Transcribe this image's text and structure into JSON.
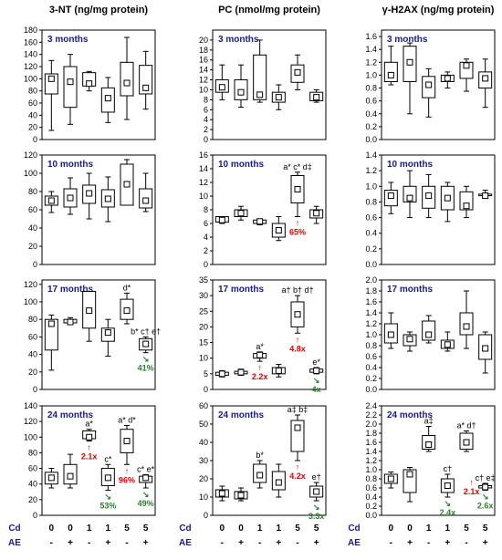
{
  "chart_data": {
    "type": "box",
    "columns": [
      {
        "title": "3-NT (ng/mg protein)"
      },
      {
        "title": "PC (nmol/mg protein)"
      },
      {
        "title": "γ-H2AX (ng/mg protein)"
      }
    ],
    "x_row_labels": [
      "Cd",
      "AE"
    ],
    "x_groups": [
      {
        "cd": "0",
        "ae": "-"
      },
      {
        "cd": "0",
        "ae": "+"
      },
      {
        "cd": "1",
        "ae": "-"
      },
      {
        "cd": "1",
        "ae": "+"
      },
      {
        "cd": "5",
        "ae": "-"
      },
      {
        "cd": "5",
        "ae": "+"
      }
    ],
    "panels": [
      {
        "title": "3 months",
        "ylim": [
          0,
          180
        ],
        "yticks": [
          0,
          20,
          40,
          60,
          80,
          100,
          120,
          140,
          160,
          180
        ],
        "boxes": [
          [
            15,
            75,
            100,
            108,
            130
          ],
          [
            25,
            53,
            95,
            120,
            140
          ],
          [
            80,
            88,
            92,
            110,
            112
          ],
          [
            28,
            45,
            68,
            85,
            102
          ],
          [
            33,
            72,
            93,
            127,
            168
          ],
          [
            50,
            75,
            85,
            122,
            145
          ]
        ],
        "annotations": []
      },
      {
        "title": "3 months",
        "ylim": [
          0,
          22
        ],
        "yticks": [
          0,
          2,
          4,
          6,
          8,
          10,
          12,
          14,
          16,
          18,
          20
        ],
        "boxes": [
          [
            8,
            9.5,
            10.5,
            12,
            15
          ],
          [
            6.5,
            8,
            9.5,
            12,
            15
          ],
          [
            7.5,
            8,
            9,
            17,
            20
          ],
          [
            6,
            7.5,
            8.5,
            9.5,
            11
          ],
          [
            10,
            11.5,
            13.5,
            15,
            17
          ],
          [
            7.5,
            7.8,
            8.5,
            9.5,
            10
          ]
        ],
        "annotations": []
      },
      {
        "title": "3 months",
        "ylim": [
          0,
          1.7
        ],
        "yticks": [
          0,
          0.2,
          0.4,
          0.6,
          0.8,
          1.0,
          1.2,
          1.4,
          1.6
        ],
        "boxes": [
          [
            0.85,
            0.9,
            1.0,
            1.2,
            1.45
          ],
          [
            0.4,
            0.9,
            1.2,
            1.45,
            1.5
          ],
          [
            0.35,
            0.65,
            0.85,
            0.98,
            1.1
          ],
          [
            0.8,
            0.9,
            0.95,
            1.0,
            1.05
          ],
          [
            0.75,
            0.95,
            1.15,
            1.2,
            1.25
          ],
          [
            0.5,
            0.8,
            0.95,
            1.05,
            1.25
          ]
        ],
        "annotations": []
      },
      {
        "title": "10 months",
        "ylim": [
          0,
          120
        ],
        "yticks": [
          0,
          20,
          40,
          60,
          80,
          100,
          120
        ],
        "boxes": [
          [
            57,
            65,
            70,
            75,
            80
          ],
          [
            55,
            63,
            73,
            83,
            95
          ],
          [
            50,
            67,
            78,
            87,
            100
          ],
          [
            47,
            63,
            72,
            82,
            96
          ],
          [
            65,
            65,
            88,
            110,
            115
          ],
          [
            58,
            62,
            70,
            83,
            100
          ]
        ],
        "annotations": []
      },
      {
        "title": "10 months",
        "ylim": [
          0,
          16
        ],
        "yticks": [
          0,
          2,
          4,
          6,
          8,
          10,
          12,
          14,
          16
        ],
        "boxes": [
          [
            6,
            6.2,
            6.5,
            7,
            7
          ],
          [
            6.5,
            7,
            7.5,
            8,
            8.5
          ],
          [
            5.8,
            6,
            6.3,
            6.5,
            6.5
          ],
          [
            3.5,
            4,
            5,
            6,
            7
          ],
          [
            7,
            9,
            11,
            13,
            13.5
          ],
          [
            6,
            6.8,
            7.5,
            8,
            8.5
          ]
        ],
        "annotations": [
          {
            "box": 4,
            "text": "a* c* d‡",
            "style": "ann",
            "pos": "above"
          },
          {
            "box": 4,
            "text": "↑",
            "style": "red",
            "pos": "below"
          },
          {
            "box": 4,
            "text": "65%",
            "style": "red",
            "pos": "below2"
          }
        ]
      },
      {
        "title": "10 months",
        "ylim": [
          0,
          1.4
        ],
        "yticks": [
          0,
          0.2,
          0.4,
          0.6,
          0.8,
          1.0,
          1.2,
          1.4
        ],
        "boxes": [
          [
            0.65,
            0.75,
            0.88,
            0.95,
            1.05
          ],
          [
            0.6,
            0.8,
            0.85,
            1.0,
            1.2
          ],
          [
            0.6,
            0.72,
            0.88,
            1.0,
            1.15
          ],
          [
            0.55,
            0.7,
            0.85,
            1.0,
            1.05
          ],
          [
            0.6,
            0.7,
            0.75,
            0.93,
            1.0
          ],
          [
            0.85,
            0.88,
            0.88,
            0.9,
            0.95
          ]
        ],
        "annotations": []
      },
      {
        "title": "17 months",
        "ylim": [
          0,
          125
        ],
        "yticks": [
          0,
          20,
          40,
          60,
          80,
          100,
          120
        ],
        "boxes": [
          [
            22,
            45,
            75,
            80,
            85
          ],
          [
            75,
            76,
            77,
            80,
            82
          ],
          [
            55,
            70,
            90,
            112,
            112
          ],
          [
            38,
            55,
            65,
            70,
            80
          ],
          [
            75,
            80,
            90,
            103,
            110
          ],
          [
            42,
            45,
            52,
            58,
            60
          ]
        ],
        "annotations": [
          {
            "box": 4,
            "text": "d*",
            "style": "ann",
            "pos": "above"
          },
          {
            "box": 5,
            "text": "b* c† e†",
            "style": "ann",
            "pos": "above"
          },
          {
            "box": 5,
            "text": "↘",
            "style": "green",
            "pos": "below"
          },
          {
            "box": 5,
            "text": "41%",
            "style": "green",
            "pos": "below2"
          }
        ]
      },
      {
        "title": "17 months",
        "ylim": [
          0,
          35
        ],
        "yticks": [
          0,
          5,
          10,
          15,
          20,
          25,
          30,
          35
        ],
        "boxes": [
          [
            4,
            4.5,
            5,
            5.5,
            6
          ],
          [
            4.5,
            5,
            5.5,
            5.8,
            6.5
          ],
          [
            9,
            10,
            11,
            11.5,
            12
          ],
          [
            4,
            5,
            6,
            7,
            8
          ],
          [
            18,
            20,
            24,
            28,
            30
          ],
          [
            5,
            5.5,
            6,
            6.5,
            7
          ]
        ],
        "annotations": [
          {
            "box": 2,
            "text": "a*",
            "style": "ann",
            "pos": "above"
          },
          {
            "box": 2,
            "text": "↑",
            "style": "red",
            "pos": "below"
          },
          {
            "box": 2,
            "text": "2.2x",
            "style": "red",
            "pos": "below2"
          },
          {
            "box": 4,
            "text": "a† b† d†",
            "style": "ann",
            "pos": "above"
          },
          {
            "box": 4,
            "text": "↑",
            "style": "red",
            "pos": "below"
          },
          {
            "box": 4,
            "text": "4.8x",
            "style": "red",
            "pos": "below2"
          },
          {
            "box": 5,
            "text": "e*",
            "style": "ann",
            "pos": "above"
          },
          {
            "box": 5,
            "text": "↘",
            "style": "green",
            "pos": "below"
          },
          {
            "box": 5,
            "text": "4x",
            "style": "green",
            "pos": "below2"
          }
        ]
      },
      {
        "title": "17 months",
        "ylim": [
          0,
          2.0
        ],
        "yticks": [
          0,
          0.2,
          0.4,
          0.6,
          0.8,
          1.0,
          1.2,
          1.4,
          1.6,
          1.8,
          2.0
        ],
        "boxes": [
          [
            0.75,
            0.85,
            1.0,
            1.2,
            1.4
          ],
          [
            0.7,
            0.8,
            0.92,
            1.0,
            1.05
          ],
          [
            0.85,
            0.9,
            1.0,
            1.25,
            1.35
          ],
          [
            0.7,
            0.75,
            0.82,
            0.9,
            1.05
          ],
          [
            0.75,
            1.0,
            1.15,
            1.4,
            1.8
          ],
          [
            0.3,
            0.55,
            0.75,
            1.0,
            1.05
          ]
        ],
        "annotations": []
      },
      {
        "title": "24 months",
        "ylim": [
          0,
          140
        ],
        "yticks": [
          0,
          20,
          40,
          60,
          80,
          100,
          120,
          140
        ],
        "boxes": [
          [
            35,
            40,
            48,
            55,
            60
          ],
          [
            35,
            40,
            50,
            65,
            78
          ],
          [
            95,
            98,
            100,
            108,
            110
          ],
          [
            32,
            38,
            48,
            60,
            65
          ],
          [
            65,
            80,
            95,
            110,
            115
          ],
          [
            35,
            42,
            48,
            50,
            52
          ]
        ],
        "annotations": [
          {
            "box": 2,
            "text": "a*",
            "style": "ann",
            "pos": "above"
          },
          {
            "box": 2,
            "text": "↑",
            "style": "red",
            "pos": "below"
          },
          {
            "box": 2,
            "text": "2.1x",
            "style": "red",
            "pos": "below2"
          },
          {
            "box": 3,
            "text": "c*",
            "style": "ann",
            "pos": "above"
          },
          {
            "box": 3,
            "text": "↘",
            "style": "green",
            "pos": "below"
          },
          {
            "box": 3,
            "text": "53%",
            "style": "green",
            "pos": "below2"
          },
          {
            "box": 4,
            "text": "a* d*",
            "style": "ann",
            "pos": "above"
          },
          {
            "box": 4,
            "text": "↑",
            "style": "red",
            "pos": "below"
          },
          {
            "box": 4,
            "text": "96%",
            "style": "red",
            "pos": "below2"
          },
          {
            "box": 5,
            "text": "c* e*",
            "style": "ann",
            "pos": "above"
          },
          {
            "box": 5,
            "text": "↘",
            "style": "green",
            "pos": "below"
          },
          {
            "box": 5,
            "text": "49%",
            "style": "green",
            "pos": "below2"
          }
        ]
      },
      {
        "title": "24 months",
        "ylim": [
          0,
          60
        ],
        "yticks": [
          0,
          10,
          20,
          30,
          40,
          50,
          60
        ],
        "boxes": [
          [
            8,
            10,
            12,
            14,
            16
          ],
          [
            8,
            9,
            11,
            13,
            15
          ],
          [
            15,
            18,
            22,
            28,
            30
          ],
          [
            10,
            14,
            18,
            24,
            28
          ],
          [
            30,
            35,
            48,
            52,
            55
          ],
          [
            8,
            10,
            13,
            16,
            18
          ]
        ],
        "annotations": [
          {
            "box": 2,
            "text": "b*",
            "style": "ann",
            "pos": "above"
          },
          {
            "box": 4,
            "text": "a‡ b‡",
            "style": "ann",
            "pos": "above"
          },
          {
            "box": 4,
            "text": "↑",
            "style": "red",
            "pos": "below"
          },
          {
            "box": 4,
            "text": "4.2x",
            "style": "red",
            "pos": "below2"
          },
          {
            "box": 5,
            "text": "e†",
            "style": "ann",
            "pos": "above"
          },
          {
            "box": 5,
            "text": "↘",
            "style": "green",
            "pos": "below"
          },
          {
            "box": 5,
            "text": "3.3x",
            "style": "green",
            "pos": "below2"
          }
        ]
      },
      {
        "title": "24 months",
        "ylim": [
          0,
          2.4
        ],
        "yticks": [
          0,
          0.2,
          0.4,
          0.6,
          0.8,
          1.0,
          1.2,
          1.4,
          1.6,
          1.8,
          2.0,
          2.2,
          2.4
        ],
        "boxes": [
          [
            0.6,
            0.7,
            0.8,
            0.9,
            0.95
          ],
          [
            0.3,
            0.5,
            0.9,
            1.0,
            1.05
          ],
          [
            1.4,
            1.45,
            1.55,
            1.75,
            1.95
          ],
          [
            0.4,
            0.5,
            0.65,
            0.8,
            0.9
          ],
          [
            1.4,
            1.45,
            1.6,
            1.8,
            1.85
          ],
          [
            0.55,
            0.6,
            0.62,
            0.65,
            0.7
          ]
        ],
        "annotations": [
          {
            "box": 2,
            "text": "a‡",
            "style": "ann",
            "pos": "above"
          },
          {
            "box": 3,
            "text": "c†",
            "style": "ann",
            "pos": "above"
          },
          {
            "box": 3,
            "text": "↘",
            "style": "green",
            "pos": "below"
          },
          {
            "box": 3,
            "text": "2.4x",
            "style": "green",
            "pos": "below2"
          },
          {
            "box": 4,
            "text": "a* d†",
            "style": "ann",
            "pos": "above"
          },
          {
            "box": 5,
            "text": "c† e‡",
            "style": "ann",
            "pos": "above"
          },
          {
            "box": 5,
            "text": "↑",
            "style": "red",
            "pos": "left"
          },
          {
            "box": 5,
            "text": "2.1x",
            "style": "red",
            "pos": "left2"
          },
          {
            "box": 5,
            "text": "↘",
            "style": "green",
            "pos": "below"
          },
          {
            "box": 5,
            "text": "2.6x",
            "style": "green",
            "pos": "below2"
          }
        ]
      }
    ]
  }
}
